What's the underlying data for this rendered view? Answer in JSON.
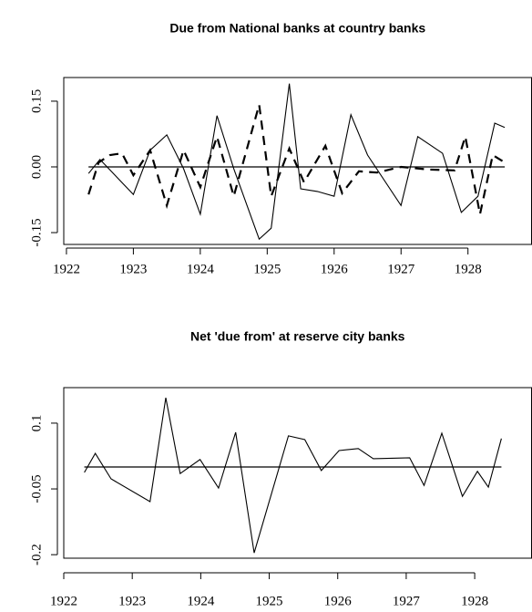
{
  "chart_data": [
    {
      "type": "line",
      "title": "Due from National banks at country banks",
      "xlim": [
        1921.96,
        1928.95
      ],
      "xticks": [
        1922,
        1923,
        1924,
        1925,
        1926,
        1927,
        1928
      ],
      "ylim": [
        -0.177,
        0.204
      ],
      "yticks": [
        -0.15,
        {
          "value": 0,
          "label": "0.00"
        },
        0.15
      ],
      "hline": 0,
      "series": [
        {
          "color": "#000000",
          "dashed": false,
          "x": [
            1922.33,
            1922.5,
            1923.0,
            1923.25,
            1923.5,
            1923.75,
            1924.0,
            1924.25,
            1924.5,
            1924.88,
            1925.06,
            1925.33,
            1925.5,
            1925.75,
            1926.0,
            1926.25,
            1926.5,
            1927.0,
            1927.25,
            1927.62,
            1927.9,
            1928.15,
            1928.4,
            1928.55
          ],
          "values": [
            -0.015,
            0.017,
            -0.063,
            0.038,
            0.073,
            -0.004,
            -0.108,
            0.117,
            -0.004,
            -0.165,
            -0.14,
            0.19,
            -0.05,
            -0.056,
            -0.067,
            0.119,
            0.027,
            -0.088,
            0.069,
            0.031,
            -0.104,
            -0.067,
            0.1,
            0.09
          ]
        },
        {
          "color": "#000000",
          "dashed": true,
          "x": [
            1922.33,
            1922.48,
            1922.65,
            1922.83,
            1923.0,
            1923.25,
            1923.5,
            1923.75,
            1924.0,
            1924.25,
            1924.5,
            1924.88,
            1925.06,
            1925.33,
            1925.55,
            1925.87,
            1926.12,
            1926.37,
            1926.64,
            1927.0,
            1927.42,
            1927.8,
            1927.96,
            1928.18,
            1928.37,
            1928.55
          ],
          "values": [
            -0.063,
            0.01,
            0.027,
            0.031,
            -0.019,
            0.038,
            -0.088,
            0.038,
            -0.046,
            0.069,
            -0.067,
            0.142,
            -0.067,
            0.042,
            -0.035,
            0.048,
            -0.06,
            -0.01,
            -0.013,
            0,
            -0.006,
            -0.008,
            0.069,
            -0.108,
            0.027,
            0.01
          ]
        }
      ]
    },
    {
      "type": "line",
      "title": "Net 'due from' at reserve city banks",
      "xlim": [
        1922.0,
        1928.83
      ],
      "xticks": [
        1922,
        1923,
        1924,
        1925,
        1926,
        1927,
        1928
      ],
      "ylim": [
        -0.208,
        0.181
      ],
      "yticks": [
        -0.2,
        -0.05,
        0.1
      ],
      "hline": 0,
      "series": [
        {
          "color": "#000000",
          "dashed": false,
          "x": [
            1922.3,
            1922.46,
            1922.69,
            1923.26,
            1923.49,
            1923.7,
            1923.99,
            1924.26,
            1924.51,
            1924.78,
            1925.28,
            1925.52,
            1925.76,
            1926.02,
            1926.3,
            1926.52,
            1927.05,
            1927.26,
            1927.52,
            1927.82,
            1928.04,
            1928.2,
            1928.39
          ],
          "values": [
            -0.0125,
            0.031,
            -0.027,
            -0.079,
            0.158,
            -0.015,
            0.017,
            -0.048,
            0.079,
            -0.196,
            0.071,
            0.0625,
            -0.008,
            0.0375,
            0.042,
            0.019,
            0.021,
            -0.042,
            0.077,
            -0.067,
            -0.01,
            -0.046,
            0.065
          ]
        }
      ]
    }
  ]
}
